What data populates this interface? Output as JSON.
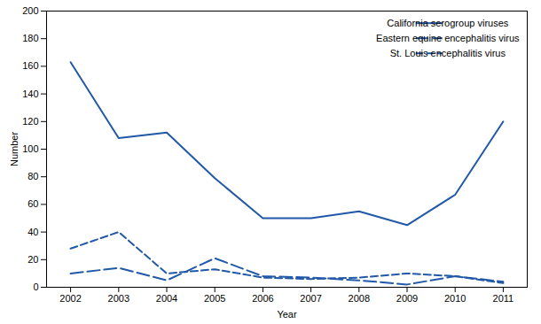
{
  "chart_data": {
    "type": "line",
    "xlabel": "Year",
    "ylabel": "Number",
    "x": [
      2002,
      2003,
      2004,
      2005,
      2006,
      2007,
      2008,
      2009,
      2010,
      2011
    ],
    "series": [
      {
        "name": "California serogroup viruses",
        "color": "#2158a8",
        "line_style": "solid",
        "values": [
          163,
          108,
          112,
          79,
          50,
          50,
          55,
          45,
          67,
          120
        ]
      },
      {
        "name": "Eastern equine encephalitis virus",
        "color": "#2158a8",
        "line_style": "longdash",
        "values": [
          10,
          14,
          5,
          21,
          8,
          7,
          5,
          2,
          8,
          4
        ]
      },
      {
        "name": "St. Louis encephalitis virus",
        "color": "#2158a8",
        "line_style": "dashed",
        "values": [
          28,
          40,
          10,
          13,
          7,
          6,
          7,
          10,
          8,
          3
        ]
      }
    ],
    "xlim": [
      2001.5,
      2011.5
    ],
    "xticks": [
      2002,
      2003,
      2004,
      2005,
      2006,
      2007,
      2008,
      2009,
      2010,
      2011
    ],
    "ylim": [
      0,
      200
    ],
    "yticks": [
      0,
      20,
      40,
      60,
      80,
      100,
      120,
      140,
      160,
      180,
      200
    ],
    "grid": false,
    "legend": "upper right"
  }
}
